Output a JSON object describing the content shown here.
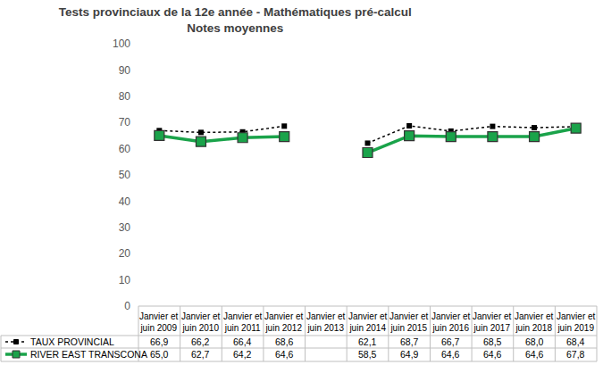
{
  "chart_data": {
    "type": "line",
    "title": "Tests provinciaux de la 12e année - Mathématiques pré-calcul",
    "subtitle": "Notes moyennes",
    "categories": [
      "Janvier et juin 2009",
      "Janvier et juin 2010",
      "Janvier et juin 2011",
      "Janvier et juin 2012",
      "Janvier et juin 2013",
      "Janvier et juin 2014",
      "Janvier et juin 2015",
      "Janvier et juin 2016",
      "Janvier et juin 2017",
      "Janvier et juin 2018",
      "Janvier et juin 2019"
    ],
    "series": [
      {
        "name": "TAUX PROVINCIAL",
        "color": "#000000",
        "marker": "square",
        "line_style": "dotted",
        "values": [
          66.9,
          66.2,
          66.4,
          68.6,
          null,
          62.1,
          68.7,
          66.7,
          68.5,
          68.0,
          68.4
        ],
        "value_labels": [
          "66,9",
          "66,2",
          "66,4",
          "68,6",
          null,
          "62,1",
          "68,7",
          "66,7",
          "68,5",
          "68,0",
          "68,4"
        ]
      },
      {
        "name": "RIVER EAST TRANSCONA",
        "color": "#1aa34a",
        "marker": "square",
        "line_style": "solid",
        "values": [
          65.0,
          62.7,
          64.2,
          64.6,
          null,
          58.5,
          64.9,
          64.6,
          64.6,
          64.6,
          67.8
        ],
        "value_labels": [
          "65,0",
          "62,7",
          "64,2",
          "64,6",
          null,
          "58,5",
          "64,9",
          "64,6",
          "64,6",
          "64,6",
          "67,8"
        ]
      }
    ],
    "ylim": [
      0,
      100
    ],
    "yticks": [
      0,
      10,
      20,
      30,
      40,
      50,
      60,
      70,
      80,
      90,
      100
    ],
    "grid": false
  }
}
